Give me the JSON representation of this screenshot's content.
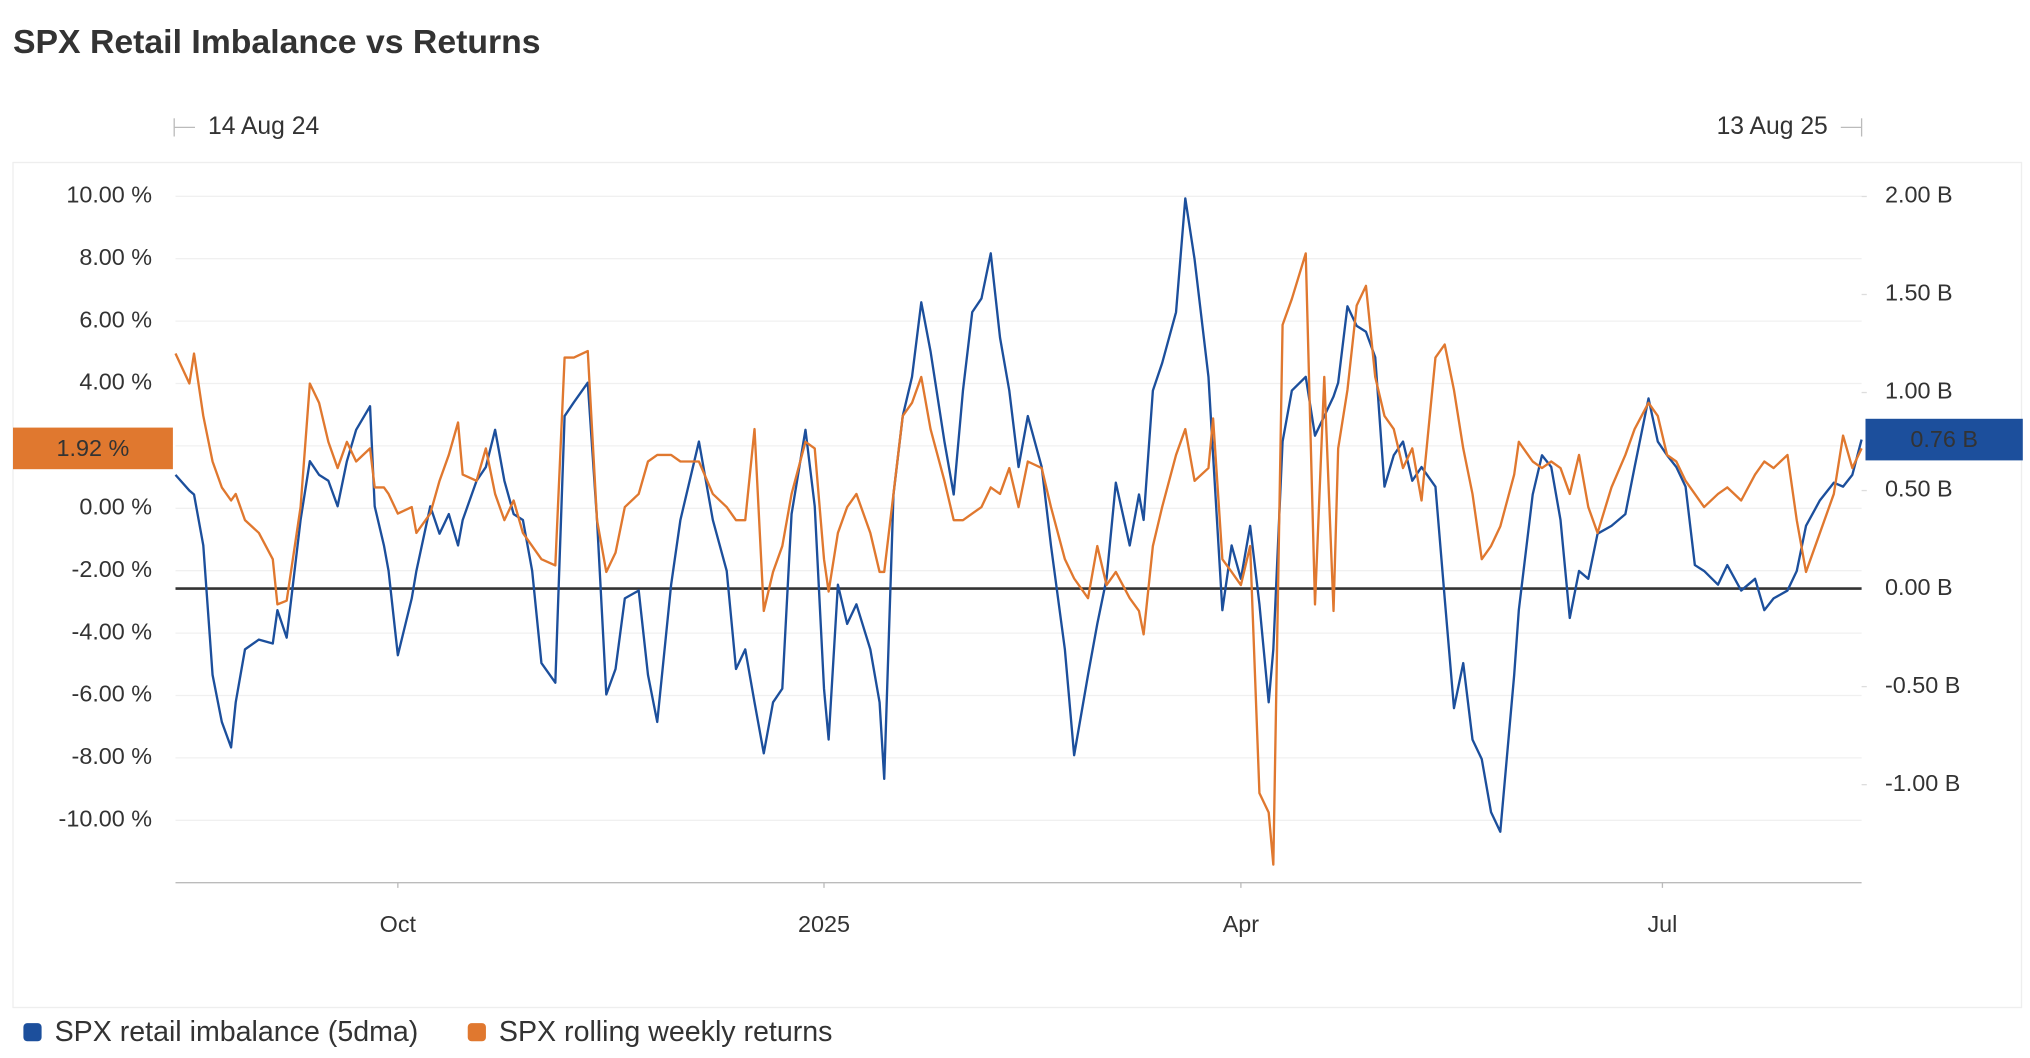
{
  "chart_data": {
    "type": "line",
    "title": "SPX Retail Imbalance vs Returns",
    "range_start_label": "14 Aug 24",
    "range_end_label": "13 Aug 25",
    "x": [
      "2024-08-14",
      "2024-08-17",
      "2024-08-18",
      "2024-08-20",
      "2024-08-22",
      "2024-08-24",
      "2024-08-26",
      "2024-08-27",
      "2024-08-29",
      "2024-09-01",
      "2024-09-04",
      "2024-09-05",
      "2024-09-07",
      "2024-09-10",
      "2024-09-12",
      "2024-09-14",
      "2024-09-16",
      "2024-09-18",
      "2024-09-20",
      "2024-09-22",
      "2024-09-25",
      "2024-09-26",
      "2024-09-28",
      "2024-09-29",
      "2024-10-01",
      "2024-10-04",
      "2024-10-05",
      "2024-10-08",
      "2024-10-10",
      "2024-10-12",
      "2024-10-14",
      "2024-10-15",
      "2024-10-18",
      "2024-10-20",
      "2024-10-22",
      "2024-10-24",
      "2024-10-26",
      "2024-10-28",
      "2024-10-30",
      "2024-11-01",
      "2024-11-04",
      "2024-11-06",
      "2024-11-08",
      "2024-11-11",
      "2024-11-13",
      "2024-11-15",
      "2024-11-17",
      "2024-11-19",
      "2024-11-22",
      "2024-11-24",
      "2024-11-26",
      "2024-11-29",
      "2024-12-01",
      "2024-12-05",
      "2024-12-08",
      "2024-12-11",
      "2024-12-13",
      "2024-12-15",
      "2024-12-17",
      "2024-12-19",
      "2024-12-21",
      "2024-12-23",
      "2024-12-25",
      "2024-12-28",
      "2024-12-30",
      "2025-01-01",
      "2025-01-02",
      "2025-01-04",
      "2025-01-06",
      "2025-01-08",
      "2025-01-11",
      "2025-01-13",
      "2025-01-14",
      "2025-01-16",
      "2025-01-18",
      "2025-01-20",
      "2025-01-22",
      "2025-01-24",
      "2025-01-27",
      "2025-01-29",
      "2025-01-31",
      "2025-02-02",
      "2025-02-04",
      "2025-02-06",
      "2025-02-08",
      "2025-02-10",
      "2025-02-12",
      "2025-02-14",
      "2025-02-17",
      "2025-02-19",
      "2025-02-22",
      "2025-02-24",
      "2025-02-27",
      "2025-03-01",
      "2025-03-03",
      "2025-03-05",
      "2025-03-08",
      "2025-03-10",
      "2025-03-11",
      "2025-03-13",
      "2025-03-15",
      "2025-03-18",
      "2025-03-20",
      "2025-03-22",
      "2025-03-25",
      "2025-03-26",
      "2025-03-28",
      "2025-03-30",
      "2025-04-01",
      "2025-04-03",
      "2025-04-05",
      "2025-04-07",
      "2025-04-08",
      "2025-04-10",
      "2025-04-12",
      "2025-04-15",
      "2025-04-17",
      "2025-04-19",
      "2025-04-21",
      "2025-04-22",
      "2025-04-24",
      "2025-04-26",
      "2025-04-28",
      "2025-04-30",
      "2025-05-02",
      "2025-05-04",
      "2025-05-06",
      "2025-05-08",
      "2025-05-10",
      "2025-05-13",
      "2025-05-15",
      "2025-05-17",
      "2025-05-19",
      "2025-05-21",
      "2025-05-23",
      "2025-05-25",
      "2025-05-27",
      "2025-05-30",
      "2025-05-31",
      "2025-06-03",
      "2025-06-05",
      "2025-06-07",
      "2025-06-09",
      "2025-06-11",
      "2025-06-13",
      "2025-06-15",
      "2025-06-17",
      "2025-06-20",
      "2025-06-23",
      "2025-06-25",
      "2025-06-28",
      "2025-06-30",
      "2025-07-02",
      "2025-07-04",
      "2025-07-06",
      "2025-07-08",
      "2025-07-10",
      "2025-07-13",
      "2025-07-15",
      "2025-07-18",
      "2025-07-21",
      "2025-07-23",
      "2025-07-25",
      "2025-07-28",
      "2025-07-30",
      "2025-08-01",
      "2025-08-04",
      "2025-08-07",
      "2025-08-09",
      "2025-08-11",
      "2025-08-13"
    ],
    "xlim": [
      "2024-08-14",
      "2025-08-13"
    ],
    "xticks": [
      {
        "value": "2024-10-01",
        "label": "Oct"
      },
      {
        "value": "2025-01-01",
        "label": "2025"
      },
      {
        "value": "2025-04-01",
        "label": "Apr"
      },
      {
        "value": "2025-07-01",
        "label": "Jul"
      }
    ],
    "ylim": [
      -12,
      11
    ],
    "yticks": [
      {
        "value": 10,
        "label": "10.00 %"
      },
      {
        "value": 8,
        "label": "8.00 %"
      },
      {
        "value": 6,
        "label": "6.00 %"
      },
      {
        "value": 4,
        "label": "4.00 %"
      },
      {
        "value": 2,
        "label": "2.00 %"
      },
      {
        "value": 0,
        "label": "0.00 %"
      },
      {
        "value": -2,
        "label": "-2.00 %"
      },
      {
        "value": -4,
        "label": "-4.00 %"
      },
      {
        "value": -6,
        "label": "-6.00 %"
      },
      {
        "value": -8,
        "label": "-8.00 %"
      },
      {
        "value": -10,
        "label": "-10.00 %"
      }
    ],
    "y2lim": [
      -1.5,
      2.16
    ],
    "y2ticks": [
      {
        "value": 2,
        "label": "2.00 B"
      },
      {
        "value": 1.5,
        "label": "1.50 B"
      },
      {
        "value": 1,
        "label": "1.00 B"
      },
      {
        "value": 0.5,
        "label": "0.50 B"
      },
      {
        "value": 0,
        "label": "0.00 B"
      },
      {
        "value": -0.5,
        "label": "-0.50 B"
      },
      {
        "value": -1,
        "label": "-1.00 B"
      }
    ],
    "grid": true,
    "series": [
      {
        "name": "SPX retail imbalance (5dma)",
        "color": "#1c4f9c",
        "axis": "y2",
        "last_label": "0.76 B",
        "values": [
          0.58,
          0.5,
          0.48,
          0.22,
          -0.44,
          -0.68,
          -0.81,
          -0.58,
          -0.31,
          -0.26,
          -0.28,
          -0.11,
          -0.25,
          0.35,
          0.65,
          0.58,
          0.55,
          0.42,
          0.65,
          0.81,
          0.93,
          0.42,
          0.22,
          0.09,
          -0.34,
          -0.05,
          0.09,
          0.42,
          0.28,
          0.38,
          0.22,
          0.35,
          0.55,
          0.62,
          0.81,
          0.55,
          0.38,
          0.35,
          0.09,
          -0.38,
          -0.48,
          0.88,
          0.95,
          1.05,
          0.35,
          -0.54,
          -0.41,
          -0.05,
          -0.01,
          -0.44,
          -0.68,
          0.02,
          0.35,
          0.75,
          0.35,
          0.09,
          -0.41,
          -0.31,
          -0.58,
          -0.84,
          -0.58,
          -0.51,
          0.38,
          0.81,
          0.42,
          -0.51,
          -0.77,
          0.02,
          -0.18,
          -0.08,
          -0.31,
          -0.58,
          -0.97,
          0.48,
          0.88,
          1.08,
          1.46,
          1.21,
          0.75,
          0.48,
          1.01,
          1.41,
          1.48,
          1.71,
          1.28,
          1.01,
          0.62,
          0.88,
          0.62,
          0.22,
          -0.31,
          -0.85,
          -0.44,
          -0.18,
          0.05,
          0.54,
          0.22,
          0.48,
          0.35,
          1.01,
          1.15,
          1.41,
          1.99,
          1.68,
          1.08,
          0.68,
          -0.11,
          0.22,
          0.05,
          0.32,
          -0.08,
          -0.58,
          -0.31,
          0.75,
          1.01,
          1.08,
          0.78,
          0.88,
          0.98,
          1.05,
          1.44,
          1.34,
          1.31,
          1.18,
          0.52,
          0.68,
          0.75,
          0.55,
          0.62,
          0.52,
          -0.05,
          -0.61,
          -0.38,
          -0.77,
          -0.87,
          -1.14,
          -1.24,
          -0.44,
          -0.11,
          0.48,
          0.68,
          0.62,
          0.35,
          -0.15,
          0.09,
          0.05,
          0.28,
          0.32,
          0.38,
          0.62,
          0.97,
          0.75,
          0.68,
          0.62,
          0.52,
          0.12,
          0.09,
          0.02,
          0.12,
          -0.01,
          0.05,
          -0.11,
          -0.05,
          -0.01,
          0.09,
          0.32,
          0.45,
          0.54,
          0.52,
          0.58,
          0.76
        ]
      },
      {
        "name": "SPX rolling weekly returns",
        "color": "#e0782f",
        "axis": "y",
        "last_label": "1.92 %",
        "values": [
          4.96,
          4.0,
          4.96,
          2.96,
          1.5,
          0.67,
          0.25,
          0.46,
          -0.38,
          -0.79,
          -1.63,
          -3.08,
          -2.96,
          0.04,
          4.0,
          3.38,
          2.13,
          1.29,
          2.13,
          1.5,
          1.92,
          0.67,
          0.67,
          0.46,
          -0.17,
          0.04,
          -0.79,
          -0.17,
          0.88,
          1.71,
          2.75,
          1.08,
          0.88,
          1.92,
          0.46,
          -0.38,
          0.25,
          -0.79,
          -1.21,
          -1.63,
          -1.83,
          4.83,
          4.83,
          5.04,
          -0.38,
          -2.04,
          -1.42,
          0.04,
          0.46,
          1.5,
          1.71,
          1.71,
          1.5,
          1.5,
          0.46,
          0.04,
          -0.38,
          -0.38,
          2.54,
          -3.29,
          -2.04,
          -1.21,
          0.46,
          2.13,
          1.92,
          -1.63,
          -2.67,
          -0.79,
          0.04,
          0.46,
          -0.79,
          -2.04,
          -2.04,
          0.46,
          2.96,
          3.38,
          4.21,
          2.54,
          0.88,
          -0.38,
          -0.38,
          -0.17,
          0.04,
          0.67,
          0.46,
          1.29,
          0.04,
          1.5,
          1.29,
          0.04,
          -1.63,
          -2.25,
          -2.88,
          -1.21,
          -2.46,
          -2.04,
          -2.88,
          -3.29,
          -4.04,
          -1.21,
          0.04,
          1.71,
          2.54,
          0.88,
          1.29,
          2.88,
          -1.63,
          -2.04,
          -2.46,
          -1.21,
          -9.13,
          -9.75,
          -11.42,
          5.88,
          6.71,
          8.17,
          -3.08,
          4.21,
          -3.29,
          1.92,
          3.79,
          6.5,
          7.13,
          4.21,
          2.96,
          2.54,
          1.29,
          1.92,
          0.25,
          4.83,
          5.25,
          3.79,
          1.92,
          0.46,
          -1.63,
          -1.21,
          -0.58,
          1.08,
          2.13,
          1.5,
          1.29,
          1.5,
          1.29,
          0.46,
          1.71,
          0.04,
          -0.79,
          0.67,
          1.71,
          2.54,
          3.38,
          2.96,
          1.71,
          1.5,
          0.88,
          0.46,
          0.04,
          0.46,
          0.67,
          0.25,
          1.08,
          1.5,
          1.29,
          1.71,
          -0.38,
          -2.04,
          -0.79,
          0.46,
          2.33,
          1.29,
          1.92
        ]
      }
    ]
  }
}
